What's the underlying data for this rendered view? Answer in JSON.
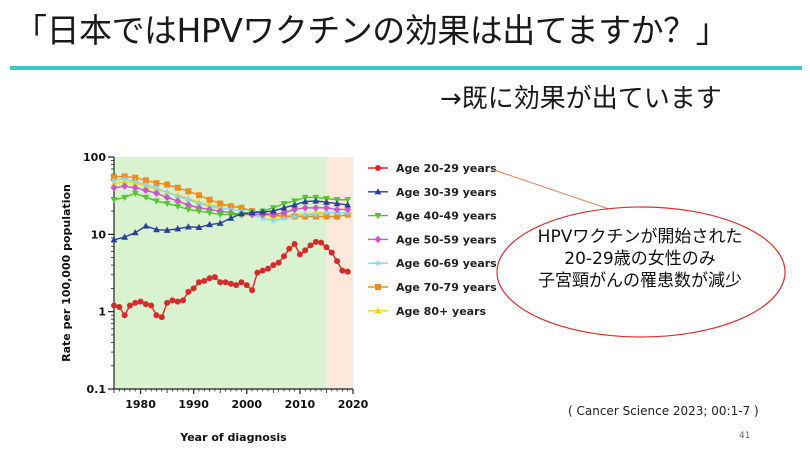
{
  "slide": {
    "title": "「日本ではHPVワクチンの効果は出てますか？」",
    "subtitle": "→既に効果が出ています",
    "callout_lines": [
      "HPVワクチンが開始された",
      "20-29歳の女性のみ",
      "子宮頸がんの罹患数が減少"
    ],
    "citation": "( Cancer Science 2023; 00:1-7 )",
    "page_number": "41",
    "accent_color": "#3ec8c4",
    "callout_border_color": "#e03030"
  },
  "chart_data": {
    "type": "line",
    "xlabel": "Year of diagnosis",
    "ylabel": "Rate per 100,000 population",
    "yscale": "log",
    "ylim": [
      0.1,
      100
    ],
    "xlim": [
      1975,
      2020
    ],
    "xticks": [
      "1980",
      "1990",
      "2000",
      "2010",
      "2020"
    ],
    "yticks": [
      "0.1",
      "1",
      "10",
      "100"
    ],
    "shaded_periods": [
      {
        "from": 1975,
        "to": 2015,
        "color": "#d9f2d0"
      },
      {
        "from": 2015,
        "to": 2020,
        "color": "#fde8dc"
      }
    ],
    "legend_position": "right",
    "series": [
      {
        "name": "Age 20-29 years",
        "color": "#d62b2b",
        "marker": "circle",
        "x": [
          1975,
          1976,
          1977,
          1978,
          1979,
          1980,
          1981,
          1982,
          1983,
          1984,
          1985,
          1986,
          1987,
          1988,
          1989,
          1990,
          1991,
          1992,
          1993,
          1994,
          1995,
          1996,
          1997,
          1998,
          1999,
          2000,
          2001,
          2002,
          2003,
          2004,
          2005,
          2006,
          2007,
          2008,
          2009,
          2010,
          2011,
          2012,
          2013,
          2014,
          2015,
          2016,
          2017,
          2018,
          2019
        ],
        "values": [
          1.2,
          1.15,
          0.9,
          1.2,
          1.3,
          1.35,
          1.25,
          1.2,
          0.9,
          0.85,
          1.3,
          1.4,
          1.35,
          1.4,
          1.8,
          2.0,
          2.4,
          2.5,
          2.7,
          2.8,
          2.4,
          2.4,
          2.3,
          2.2,
          2.4,
          2.2,
          1.9,
          3.2,
          3.4,
          3.6,
          4.0,
          4.3,
          5.2,
          6.5,
          7.5,
          5.5,
          6.2,
          7.2,
          8.0,
          7.8,
          6.8,
          5.8,
          4.5,
          3.4,
          3.3
        ]
      },
      {
        "name": "Age 30-39 years",
        "color": "#2a3f9c",
        "marker": "triangle",
        "x": [
          1975,
          1977,
          1979,
          1981,
          1983,
          1985,
          1987,
          1989,
          1991,
          1993,
          1995,
          1997,
          1999,
          2001,
          2003,
          2005,
          2007,
          2009,
          2011,
          2013,
          2015,
          2017,
          2019
        ],
        "values": [
          8.5,
          9.2,
          10.5,
          12.8,
          11.5,
          11.3,
          11.8,
          12.5,
          12.3,
          13.4,
          13.9,
          16.2,
          18.5,
          19.0,
          19.5,
          20.0,
          22.0,
          24.0,
          26.5,
          27.0,
          26.0,
          25.0,
          24.0
        ]
      },
      {
        "name": "Age 40-49 years",
        "color": "#55c52e",
        "marker": "triangle-down",
        "x": [
          1975,
          1977,
          1979,
          1981,
          1983,
          1985,
          1987,
          1989,
          1991,
          1993,
          1995,
          1997,
          1999,
          2001,
          2003,
          2005,
          2007,
          2009,
          2011,
          2013,
          2015,
          2017,
          2019
        ],
        "values": [
          28,
          30,
          34,
          30,
          27,
          25,
          23,
          21,
          20,
          19,
          18,
          18,
          18,
          19,
          20,
          22,
          25,
          27,
          30,
          30,
          29,
          28,
          28
        ]
      },
      {
        "name": "Age 50-59 years",
        "color": "#cc55cc",
        "marker": "diamond",
        "x": [
          1975,
          1977,
          1979,
          1981,
          1983,
          1985,
          1987,
          1989,
          1991,
          1993,
          1995,
          1997,
          1999,
          2001,
          2003,
          2005,
          2007,
          2009,
          2011,
          2013,
          2015,
          2017,
          2019
        ],
        "values": [
          40,
          42,
          40,
          37,
          34,
          30,
          27,
          24,
          22,
          21,
          20,
          19,
          18,
          18,
          18,
          18,
          19,
          21,
          22,
          22,
          22,
          21,
          21
        ]
      },
      {
        "name": "Age 60-69 years",
        "color": "#88d8ec",
        "marker": "star",
        "x": [
          1975,
          1977,
          1979,
          1981,
          1983,
          1985,
          1987,
          1989,
          1991,
          1993,
          1995,
          1997,
          1999,
          2001,
          2003,
          2005,
          2007,
          2009,
          2011,
          2013,
          2015,
          2017,
          2019
        ],
        "values": [
          50,
          52,
          48,
          44,
          40,
          35,
          31,
          28,
          25,
          23,
          22,
          21,
          20,
          18,
          16,
          15,
          16,
          17,
          18,
          18,
          19,
          19,
          19
        ]
      },
      {
        "name": "Age 70-79 years",
        "color": "#f08a1c",
        "marker": "square",
        "x": [
          1975,
          1977,
          1979,
          1981,
          1983,
          1985,
          1987,
          1989,
          1991,
          1993,
          1995,
          1997,
          1999,
          2001,
          2003,
          2005,
          2007,
          2009,
          2011,
          2013,
          2015,
          2017,
          2019
        ],
        "values": [
          55,
          56,
          54,
          50,
          46,
          44,
          40,
          36,
          32,
          28,
          25,
          23,
          22,
          20,
          19,
          18,
          17,
          17,
          17,
          17,
          17,
          17,
          18
        ]
      },
      {
        "name": "Age 80+ years",
        "color": "#f2d21c",
        "marker": "triangle",
        "x": [
          1975,
          1977,
          1979,
          1981,
          1983,
          1985,
          1987,
          1989,
          1991,
          1993,
          1995,
          1997,
          1999,
          2001,
          2003,
          2005,
          2007,
          2009,
          2011,
          2013,
          2015,
          2017,
          2019
        ],
        "values": [
          45,
          48,
          46,
          42,
          38,
          35,
          32,
          29,
          26,
          24,
          23,
          24,
          22,
          20,
          18,
          17,
          17,
          18,
          18,
          19,
          19,
          19,
          19
        ]
      }
    ]
  }
}
